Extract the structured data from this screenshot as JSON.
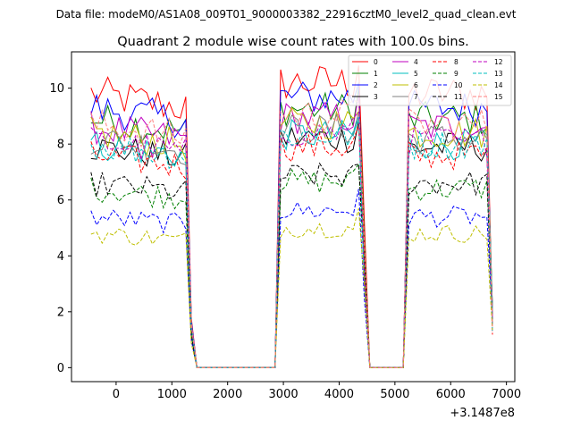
{
  "suptitle": "Data file: modeM0/AS1A08_009T01_9000003382_22916cztM0_level2_quad_clean.evt",
  "chart_data": {
    "type": "line",
    "title": "Quadrant 2 module wise count rates with 100.0s bins.",
    "xlabel": "",
    "ylabel": "",
    "x_offset_label": "+3.1487e8",
    "xlim": [
      -800,
      7150
    ],
    "ylim": [
      -0.5,
      11.3
    ],
    "xticks": [
      0,
      1000,
      2000,
      3000,
      4000,
      5000,
      6000,
      7000
    ],
    "yticks": [
      0,
      2,
      4,
      6,
      8,
      10
    ],
    "xtick_labels": [
      "0",
      "1000",
      "2000",
      "3000",
      "4000",
      "5000",
      "6000",
      "7000"
    ],
    "ytick_labels": [
      "0",
      "2",
      "4",
      "6",
      "8",
      "10"
    ],
    "grid": false,
    "legend_position": "top-right",
    "x": [
      -450,
      -350,
      -250,
      -150,
      -50,
      50,
      150,
      250,
      350,
      450,
      550,
      650,
      750,
      850,
      950,
      1050,
      1150,
      1250,
      1350,
      1450,
      1550,
      1650,
      1750,
      1850,
      1950,
      2050,
      2150,
      2250,
      2350,
      2450,
      2550,
      2650,
      2750,
      2850,
      2950,
      3050,
      3150,
      3250,
      3350,
      3450,
      3550,
      3650,
      3750,
      3850,
      3950,
      4050,
      4150,
      4250,
      4350,
      4450,
      4550,
      4650,
      4750,
      4850,
      4950,
      5050,
      5150,
      5250,
      5350,
      5450,
      5550,
      5650,
      5750,
      5850,
      5950,
      6050,
      6150,
      6250,
      6350,
      6450,
      6550,
      6650,
      6750
    ],
    "gaps": [
      {
        "from": 1450,
        "to": 2850,
        "value": 0
      },
      {
        "from": 4550,
        "to": 5150,
        "value": 0
      }
    ],
    "series": [
      {
        "name": "0",
        "color": "#ff0000",
        "dash": "solid",
        "level": 9.8
      },
      {
        "name": "1",
        "color": "#008000",
        "dash": "solid",
        "level": 8.9
      },
      {
        "name": "2",
        "color": "#0000ff",
        "dash": "solid",
        "level": 9.3
      },
      {
        "name": "3",
        "color": "#000000",
        "dash": "solid",
        "level": 7.9
      },
      {
        "name": "4",
        "color": "#bf00bf",
        "dash": "solid",
        "level": 8.6
      },
      {
        "name": "5",
        "color": "#00bfbf",
        "dash": "solid",
        "level": 8.0
      },
      {
        "name": "6",
        "color": "#bfbf00",
        "dash": "solid",
        "level": 8.4
      },
      {
        "name": "7",
        "color": "#808080",
        "dash": "solid",
        "level": 8.2
      },
      {
        "name": "8",
        "color": "#ff0000",
        "dash": "dashed",
        "level": 7.6
      },
      {
        "name": "9",
        "color": "#008000",
        "dash": "dashed",
        "level": 6.4
      },
      {
        "name": "10",
        "color": "#0000ff",
        "dash": "dashed",
        "level": 5.4
      },
      {
        "name": "11",
        "color": "#000000",
        "dash": "dashed",
        "level": 6.6
      },
      {
        "name": "12",
        "color": "#bf00bf",
        "dash": "dashed",
        "level": 8.1
      },
      {
        "name": "13",
        "color": "#00bfbf",
        "dash": "dashed",
        "level": 8.0
      },
      {
        "name": "14",
        "color": "#bfbf00",
        "dash": "dashed",
        "level": 4.8
      },
      {
        "name": "15",
        "color": "#ff7f7f",
        "dash": "dashed",
        "level": 8.7
      }
    ]
  }
}
